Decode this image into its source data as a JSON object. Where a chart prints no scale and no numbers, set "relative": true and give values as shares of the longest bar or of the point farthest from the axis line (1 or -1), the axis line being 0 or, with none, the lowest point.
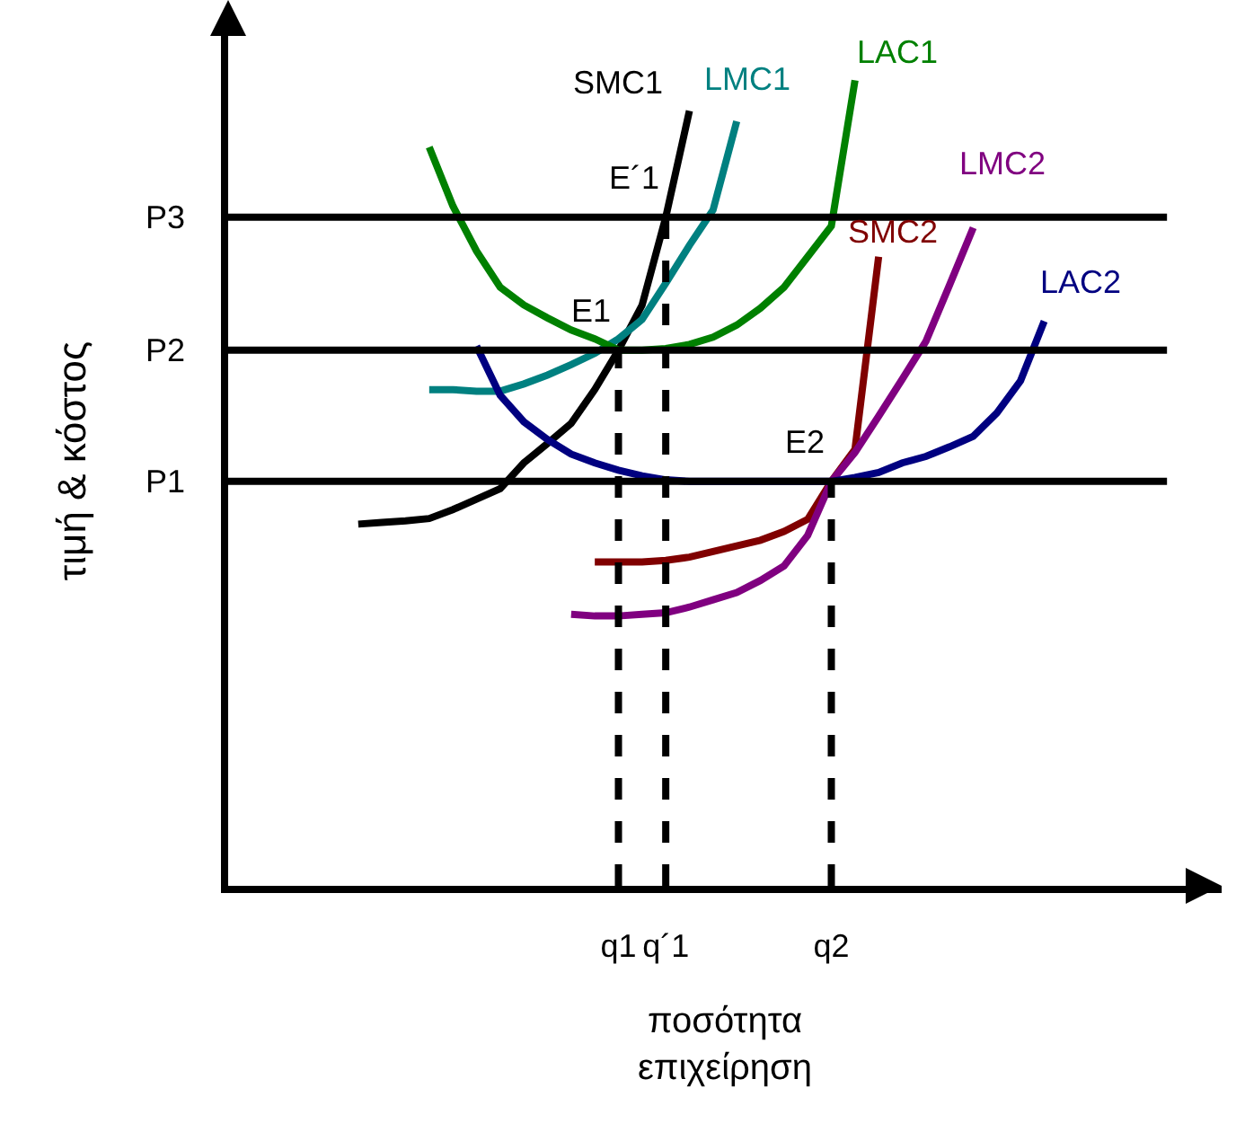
{
  "chart_data": {
    "type": "line",
    "relative": true,
    "xlabel": "ποσότητα\nεπιχείρηση",
    "ylabel": "τιμή & κόστος",
    "grid": false,
    "legend": false,
    "marker": "none",
    "line_style": "solid",
    "categories": [
      null,
      null,
      null,
      null,
      null,
      null,
      null,
      null,
      null,
      null,
      null,
      null,
      null,
      null,
      null,
      null,
      "q1",
      null,
      "q´1",
      null,
      null,
      null,
      null,
      null,
      null,
      "q2",
      null,
      null,
      null,
      null,
      null,
      null,
      null,
      null,
      null,
      null,
      null,
      null,
      null,
      null,
      null,
      null
    ],
    "series": [
      {
        "name": "SMC1",
        "color": "#000000",
        "values": [
          null,
          null,
          null,
          null,
          null,
          0.449,
          0.451,
          0.453,
          0.456,
          0.467,
          0.48,
          0.493,
          0.525,
          0.549,
          0.574,
          0.616,
          0.665,
          0.721,
          0.83,
          0.962,
          null,
          null,
          null,
          null,
          null,
          null,
          null,
          null,
          null,
          null,
          null,
          null,
          null,
          null,
          null,
          null,
          null,
          null,
          null,
          null,
          null,
          null
        ]
      },
      {
        "name": "LMC1",
        "color": "#008080",
        "values": [
          null,
          null,
          null,
          null,
          null,
          null,
          null,
          null,
          0.616,
          0.616,
          0.614,
          0.614,
          0.623,
          0.634,
          0.647,
          0.661,
          0.679,
          0.703,
          0.748,
          0.795,
          0.839,
          0.949,
          null,
          null,
          null,
          null,
          null,
          null,
          null,
          null,
          null,
          null,
          null,
          null,
          null,
          null,
          null,
          null,
          null,
          null,
          null,
          null
        ]
      },
      {
        "name": "LAC1",
        "color": "#008000",
        "values": [
          null,
          null,
          null,
          null,
          null,
          null,
          null,
          null,
          0.917,
          0.844,
          0.788,
          0.743,
          0.721,
          0.705,
          0.69,
          0.679,
          0.665,
          0.665,
          0.667,
          0.672,
          0.681,
          0.696,
          0.717,
          0.743,
          0.781,
          0.819,
          1,
          null,
          null,
          null,
          null,
          null,
          null,
          null,
          null,
          null,
          null,
          null,
          null,
          null,
          null,
          null
        ]
      },
      {
        "name": "SMC2",
        "color": "#800000",
        "values": [
          null,
          null,
          null,
          null,
          null,
          null,
          null,
          null,
          null,
          null,
          null,
          null,
          null,
          null,
          null,
          0.402,
          0.402,
          0.402,
          0.404,
          0.408,
          0.415,
          0.422,
          0.429,
          0.44,
          0.455,
          0.502,
          0.542,
          0.781,
          null,
          null,
          null,
          null,
          null,
          null,
          null,
          null,
          null,
          null,
          null,
          null,
          null,
          null
        ]
      },
      {
        "name": "LMC2",
        "color": "#800080",
        "values": [
          null,
          null,
          null,
          null,
          null,
          null,
          null,
          null,
          null,
          null,
          null,
          null,
          null,
          null,
          0.337,
          0.335,
          0.335,
          0.337,
          0.339,
          0.346,
          0.355,
          0.364,
          0.379,
          0.397,
          0.435,
          0.502,
          0.538,
          0.583,
          0.629,
          0.676,
          0.746,
          0.817,
          null,
          null,
          null,
          null,
          null,
          null,
          null,
          null,
          null,
          null
        ]
      },
      {
        "name": "LAC2",
        "color": "#000080",
        "values": [
          null,
          null,
          null,
          null,
          null,
          null,
          null,
          null,
          null,
          null,
          0.67,
          0.609,
          0.576,
          0.554,
          0.536,
          0.525,
          0.516,
          0.509,
          0.504,
          0.502,
          0.502,
          0.502,
          0.502,
          0.502,
          0.502,
          0.502,
          0.507,
          0.513,
          0.525,
          0.533,
          0.545,
          0.558,
          0.587,
          0.627,
          0.701,
          null,
          null,
          null,
          null,
          null,
          null,
          null
        ]
      }
    ],
    "ref_lines": [
      {
        "axis": "y",
        "value": 0.502,
        "label": "P1",
        "color": "#000000"
      },
      {
        "axis": "y",
        "value": 0.665,
        "label": "P2",
        "color": "#000000"
      },
      {
        "axis": "y",
        "value": 0.83,
        "label": "P3",
        "color": "#000000"
      },
      {
        "axis": "x",
        "value": "q1",
        "color": "#000000",
        "line_style": "dashed"
      },
      {
        "axis": "x",
        "value": "q´1",
        "color": "#000000",
        "line_style": "dashed"
      },
      {
        "axis": "x",
        "value": "q2",
        "color": "#000000",
        "line_style": "dashed"
      }
    ],
    "annotations": [
      {
        "text": "E1",
        "x": "q1",
        "y": 0.665
      },
      {
        "text": "E´1",
        "x": "q´1",
        "y": 0.83
      },
      {
        "text": "E2",
        "x": "q2",
        "y": 0.502
      }
    ]
  }
}
